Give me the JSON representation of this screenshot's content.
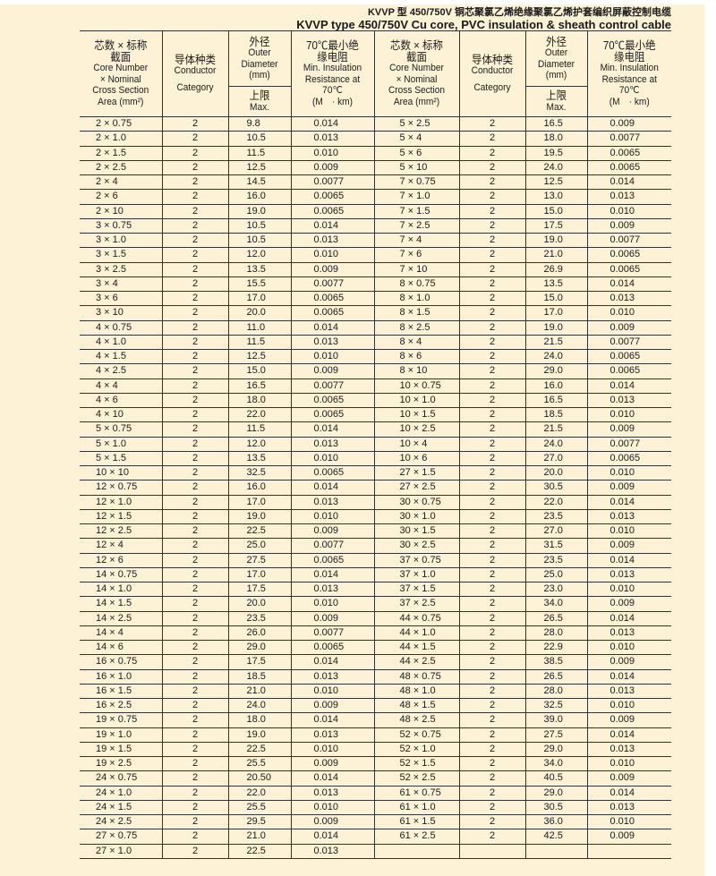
{
  "title_cn": "KVVP 型 450/750V 铜芯聚氯乙烯绝缘聚氯乙烯护套编织屏蔽控制电缆",
  "title_en": "KVVP type 450/750V Cu core, PVC insulation & sheath control cable",
  "headers": {
    "core_cn1": "芯数 × 标称",
    "core_cn2": "截面",
    "core_en1": "Core Number",
    "core_en2": "× Nominal",
    "core_en3": "Cross Section",
    "core_en4": "Area (mm²)",
    "cond_cn": "导体种类",
    "cond_en1": "Conductor",
    "cond_en2": "Category",
    "od_cn": "外径",
    "od_en1": "Outer",
    "od_en2": "Diameter",
    "od_en3": "(mm)",
    "max_cn": "上限",
    "max_en": "Max.",
    "res_cn1": "70℃最小绝",
    "res_cn2": "缘电阻",
    "res_en1": "Min. Insulation",
    "res_en2": "Resistance at",
    "res_en3": "70℃",
    "res_unit": "(M　· km)"
  },
  "left_rows": [
    [
      "2 × 0.75",
      "2",
      "9.8",
      "0.014"
    ],
    [
      "2 × 1.0",
      "2",
      "10.5",
      "0.013"
    ],
    [
      "2 × 1.5",
      "2",
      "11.5",
      "0.010"
    ],
    [
      "2 × 2.5",
      "2",
      "12.5",
      "0.009"
    ],
    [
      "2 × 4",
      "2",
      "14.5",
      "0.0077"
    ],
    [
      "2 × 6",
      "2",
      "16.0",
      "0.0065"
    ],
    [
      "2 × 10",
      "2",
      "19.0",
      "0.0065"
    ],
    [
      "3 × 0.75",
      "2",
      "10.5",
      "0.014"
    ],
    [
      "3 × 1.0",
      "2",
      "10.5",
      "0.013"
    ],
    [
      "3 × 1.5",
      "2",
      "12.0",
      "0.010"
    ],
    [
      "3 × 2.5",
      "2",
      "13.5",
      "0.009"
    ],
    [
      "3 × 4",
      "2",
      "15.5",
      "0.0077"
    ],
    [
      "3 × 6",
      "2",
      "17.0",
      "0.0065"
    ],
    [
      "3 × 10",
      "2",
      "20.0",
      "0.0065"
    ],
    [
      "4 × 0.75",
      "2",
      "11.0",
      "0.014"
    ],
    [
      "4 × 1.0",
      "2",
      "11.5",
      "0.013"
    ],
    [
      "4 × 1.5",
      "2",
      "12.5",
      "0.010"
    ],
    [
      "4 × 2.5",
      "2",
      "15.0",
      "0.009"
    ],
    [
      "4 × 4",
      "2",
      "16.5",
      "0.0077"
    ],
    [
      "4 × 6",
      "2",
      "18.0",
      "0.0065"
    ],
    [
      "4 × 10",
      "2",
      "22.0",
      "0.0065"
    ],
    [
      "5 × 0.75",
      "2",
      "11.5",
      "0.014"
    ],
    [
      "5 × 1.0",
      "2",
      "12.0",
      "0.013"
    ],
    [
      "5 × 1.5",
      "2",
      "13.5",
      "0.010"
    ],
    [
      "10 × 10",
      "2",
      "32.5",
      "0.0065"
    ],
    [
      "12 × 0.75",
      "2",
      "16.0",
      "0.014"
    ],
    [
      "12 × 1.0",
      "2",
      "17.0",
      "0.013"
    ],
    [
      "12 × 1.5",
      "2",
      "19.0",
      "0.010"
    ],
    [
      "12 × 2.5",
      "2",
      "22.5",
      "0.009"
    ],
    [
      "12 × 4",
      "2",
      "25.0",
      "0.0077"
    ],
    [
      "12 × 6",
      "2",
      "27.5",
      "0.0065"
    ],
    [
      "14 × 0.75",
      "2",
      "17.0",
      "0.014"
    ],
    [
      "14 × 1.0",
      "2",
      "17.5",
      "0.013"
    ],
    [
      "14 × 1.5",
      "2",
      "20.0",
      "0.010"
    ],
    [
      "14 × 2.5",
      "2",
      "23.5",
      "0.009"
    ],
    [
      "14 × 4",
      "2",
      "26.0",
      "0.0077"
    ],
    [
      "14 × 6",
      "2",
      "29.0",
      "0.0065"
    ],
    [
      "16 × 0.75",
      "2",
      "17.5",
      "0.014"
    ],
    [
      "16 × 1.0",
      "2",
      "18.5",
      "0.013"
    ],
    [
      "16 × 1.5",
      "2",
      "21.0",
      "0.010"
    ],
    [
      "16 × 2.5",
      "2",
      "24.0",
      "0.009"
    ],
    [
      "19 × 0.75",
      "2",
      "18.0",
      "0.014"
    ],
    [
      "19 × 1.0",
      "2",
      "19.0",
      "0.013"
    ],
    [
      "19 × 1.5",
      "2",
      "22.5",
      "0.010"
    ],
    [
      "19 × 2.5",
      "2",
      "25.5",
      "0.009"
    ],
    [
      "24 × 0.75",
      "2",
      "20.50",
      "0.014"
    ],
    [
      "24 × 1.0",
      "2",
      "22.0",
      "0.013"
    ],
    [
      "24 × 1.5",
      "2",
      "25.5",
      "0.010"
    ],
    [
      "24 × 2.5",
      "2",
      "29.5",
      "0.009"
    ],
    [
      "27 × 0.75",
      "2",
      "21.0",
      "0.014"
    ],
    [
      "27 × 1.0",
      "2",
      "22.5",
      "0.013"
    ]
  ],
  "right_rows": [
    [
      "5 × 2.5",
      "2",
      "16.5",
      "0.009"
    ],
    [
      "5 × 4",
      "2",
      "18.0",
      "0.0077"
    ],
    [
      "5 × 6",
      "2",
      "19.5",
      "0.0065"
    ],
    [
      "5 × 10",
      "2",
      "24.0",
      "0.0065"
    ],
    [
      "7 × 0.75",
      "2",
      "12.5",
      "0.014"
    ],
    [
      "7 × 1.0",
      "2",
      "13.0",
      "0.013"
    ],
    [
      "7 × 1.5",
      "2",
      "15.0",
      "0.010"
    ],
    [
      "7 × 2.5",
      "2",
      "17.5",
      "0.009"
    ],
    [
      "7 × 4",
      "2",
      "19.0",
      "0.0077"
    ],
    [
      "7 × 6",
      "2",
      "21.0",
      "0.0065"
    ],
    [
      "7 × 10",
      "2",
      "26.9",
      "0.0065"
    ],
    [
      "8 × 0.75",
      "2",
      "13.5",
      "0.014"
    ],
    [
      "8 × 1.0",
      "2",
      "15.0",
      "0.013"
    ],
    [
      "8 × 1.5",
      "2",
      "17.0",
      "0.010"
    ],
    [
      "8 × 2.5",
      "2",
      "19.0",
      "0.009"
    ],
    [
      "8 × 4",
      "2",
      "21.5",
      "0.0077"
    ],
    [
      "8 × 6",
      "2",
      "24.0",
      "0.0065"
    ],
    [
      "8 × 10",
      "2",
      "29.0",
      "0.0065"
    ],
    [
      "10 × 0.75",
      "2",
      "16.0",
      "0.014"
    ],
    [
      "10 × 1.0",
      "2",
      "16.5",
      "0.013"
    ],
    [
      "10 × 1.5",
      "2",
      "18.5",
      "0.010"
    ],
    [
      "10 × 2.5",
      "2",
      "21.5",
      "0.009"
    ],
    [
      "10 × 4",
      "2",
      "24.0",
      "0.0077"
    ],
    [
      "10 × 6",
      "2",
      "27.0",
      "0.0065"
    ],
    [
      "27 × 1.5",
      "2",
      "20.0",
      "0.010"
    ],
    [
      "27 × 2.5",
      "2",
      "30.5",
      "0.009"
    ],
    [
      "30 × 0.75",
      "2",
      "22.0",
      "0.014"
    ],
    [
      "30 × 1.0",
      "2",
      "23.5",
      "0.013"
    ],
    [
      "30 × 1.5",
      "2",
      "27.0",
      "0.010"
    ],
    [
      "30 × 2.5",
      "2",
      "31.5",
      "0.009"
    ],
    [
      "37 × 0.75",
      "2",
      "23.5",
      "0.014"
    ],
    [
      "37 × 1.0",
      "2",
      "25.0",
      "0.013"
    ],
    [
      "37 × 1.5",
      "2",
      "23.0",
      "0.010"
    ],
    [
      "37 × 2.5",
      "2",
      "34.0",
      "0.009"
    ],
    [
      "44 × 0.75",
      "2",
      "26.5",
      "0.014"
    ],
    [
      "44 × 1.0",
      "2",
      "28.0",
      "0.013"
    ],
    [
      "44 × 1.5",
      "2",
      "22.9",
      "0.010"
    ],
    [
      "44 × 2.5",
      "2",
      "38.5",
      "0.009"
    ],
    [
      "48 × 0.75",
      "2",
      "26.5",
      "0.014"
    ],
    [
      "48 × 1.0",
      "2",
      "28.0",
      "0.013"
    ],
    [
      "48 × 1.5",
      "2",
      "32.5",
      "0.010"
    ],
    [
      "48 × 2.5",
      "2",
      "39.0",
      "0.009"
    ],
    [
      "52 × 0.75",
      "2",
      "27.5",
      "0.014"
    ],
    [
      "52 × 1.0",
      "2",
      "29.0",
      "0.013"
    ],
    [
      "52 × 1.5",
      "2",
      "34.0",
      "0.010"
    ],
    [
      "52 × 2.5",
      "2",
      "40.5",
      "0.009"
    ],
    [
      "61 × 0.75",
      "2",
      "29.0",
      "0.014"
    ],
    [
      "61 × 1.0",
      "2",
      "30.5",
      "0.013"
    ],
    [
      "61 × 1.5",
      "2",
      "36.0",
      "0.010"
    ],
    [
      "61 × 2.5",
      "2",
      "42.5",
      "0.009"
    ]
  ]
}
